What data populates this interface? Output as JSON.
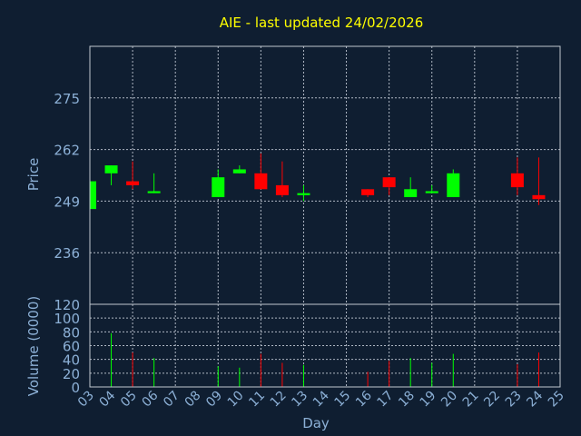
{
  "chart_data": {
    "type": "candlestick",
    "title": "AIE - last updated 24/02/2026",
    "ylabel": "Price",
    "volume_label": "Volume (0000)",
    "xlabel": "Day",
    "price_ticks": [
      "249",
      "262",
      "275",
      "236"
    ],
    "price_tick_values": [
      249,
      262,
      275,
      236
    ],
    "price_range": [
      223,
      288
    ],
    "volume_ticks": [
      "0",
      "20",
      "40",
      "60",
      "80",
      "100",
      "120"
    ],
    "volume_tick_values": [
      0,
      20,
      40,
      60,
      80,
      100,
      120
    ],
    "volume_range": [
      0,
      120
    ],
    "x_ticks": [
      "03",
      "04",
      "05",
      "06",
      "07",
      "08",
      "09",
      "10",
      "11",
      "12",
      "13",
      "14",
      "15",
      "16",
      "17",
      "18",
      "19",
      "20",
      "21",
      "22",
      "23",
      "24",
      "25"
    ],
    "grid": true,
    "up_color": "#00ff00",
    "down_color": "#ff0000",
    "candles": [
      {
        "day": "03",
        "open": 247,
        "close": 254,
        "high": 254,
        "low": 247,
        "volume": 0
      },
      {
        "day": "04",
        "open": 256,
        "close": 258,
        "high": 258,
        "low": 253,
        "volume": 78
      },
      {
        "day": "05",
        "open": 254,
        "close": 253,
        "high": 259,
        "low": 252,
        "volume": 50
      },
      {
        "day": "06",
        "open": 251,
        "close": 251.5,
        "high": 256,
        "low": 251,
        "volume": 42
      },
      {
        "day": "09",
        "open": 250,
        "close": 255,
        "high": 257,
        "low": 250,
        "volume": 30
      },
      {
        "day": "10",
        "open": 256,
        "close": 257,
        "high": 258,
        "low": 256,
        "volume": 28
      },
      {
        "day": "11",
        "open": 256,
        "close": 252,
        "high": 261,
        "low": 252,
        "volume": 48
      },
      {
        "day": "12",
        "open": 253,
        "close": 250.5,
        "high": 259,
        "low": 250,
        "volume": 35
      },
      {
        "day": "13",
        "open": 250.5,
        "close": 251,
        "high": 253,
        "low": 249,
        "volume": 32
      },
      {
        "day": "16",
        "open": 252,
        "close": 250.5,
        "high": 252,
        "low": 250,
        "volume": 22
      },
      {
        "day": "17",
        "open": 255,
        "close": 252.5,
        "high": 255,
        "low": 250.5,
        "volume": 38
      },
      {
        "day": "18",
        "open": 250,
        "close": 252,
        "high": 255,
        "low": 250,
        "volume": 42
      },
      {
        "day": "19",
        "open": 251,
        "close": 251.5,
        "high": 253,
        "low": 251,
        "volume": 35
      },
      {
        "day": "20",
        "open": 250,
        "close": 256,
        "high": 257,
        "low": 250,
        "volume": 48
      },
      {
        "day": "23",
        "open": 256,
        "close": 252.5,
        "high": 260,
        "low": 250.5,
        "volume": 33
      },
      {
        "day": "24",
        "open": 250.5,
        "close": 249.5,
        "high": 260,
        "low": 248,
        "volume": 50
      }
    ]
  }
}
